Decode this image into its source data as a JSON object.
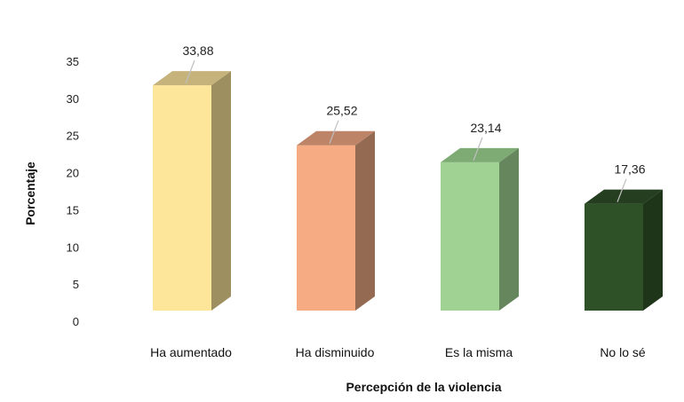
{
  "chart_data": {
    "type": "bar",
    "title": "",
    "xlabel": "Percepción de la violencia",
    "ylabel": "Porcentaje",
    "ylim": [
      0,
      35
    ],
    "yticks": [
      0,
      5,
      10,
      15,
      20,
      25,
      30,
      35
    ],
    "ytick_labels": [
      "0",
      "5",
      "10",
      "15",
      "20",
      "25",
      "30",
      "35"
    ],
    "grid": false,
    "legend": "none",
    "categories": [
      "Ha aumentado",
      "Ha disminuido",
      "Es la misma",
      "No lo sé"
    ],
    "values": [
      33.88,
      25.52,
      23.14,
      17.36
    ],
    "value_labels": [
      "33,88",
      "25,52",
      "23,14",
      "17,36"
    ],
    "colors": {
      "front": [
        "#FDE69A",
        "#F6AB82",
        "#9FD293",
        "#2F5128"
      ],
      "side": [
        "#9E8F60",
        "#946A52",
        "#66875E",
        "#1E3519"
      ],
      "top": [
        "#C6B37B",
        "#BE8468",
        "#7EAA73",
        "#243E1F"
      ]
    }
  }
}
